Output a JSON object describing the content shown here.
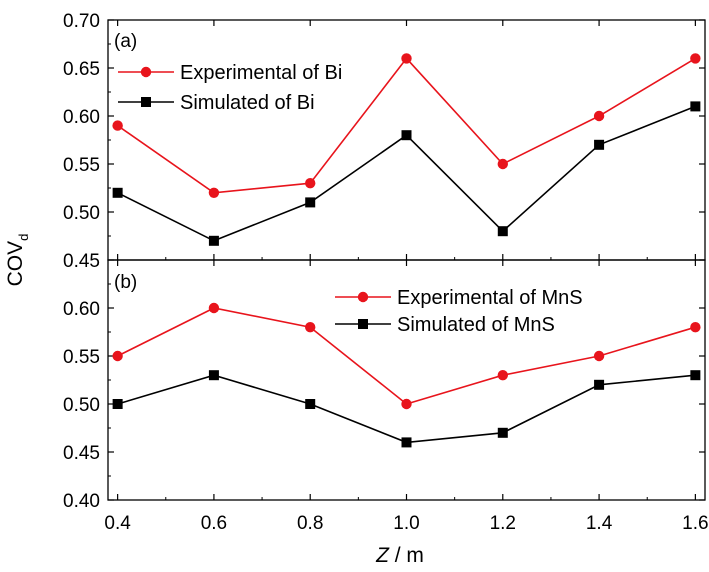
{
  "chart_data": [
    {
      "type": "line",
      "panel_label": "(a)",
      "x": [
        0.4,
        0.6,
        0.8,
        1.0,
        1.2,
        1.4,
        1.6
      ],
      "ylim": [
        0.45,
        0.7
      ],
      "yticks": [
        "0.45",
        "0.50",
        "0.55",
        "0.60",
        "0.65",
        "0.70"
      ],
      "legend_position": "top-left",
      "series": [
        {
          "name": "Experimental of Bi",
          "color": "#e8141c",
          "marker": "circle",
          "values": [
            0.59,
            0.52,
            0.53,
            0.66,
            0.55,
            0.6,
            0.66
          ]
        },
        {
          "name": "Simulated of Bi",
          "color": "#000000",
          "marker": "square",
          "values": [
            0.52,
            0.47,
            0.51,
            0.58,
            0.48,
            0.57,
            0.61
          ]
        }
      ]
    },
    {
      "type": "line",
      "panel_label": "(b)",
      "x": [
        0.4,
        0.6,
        0.8,
        1.0,
        1.2,
        1.4,
        1.6
      ],
      "ylim": [
        0.4,
        0.65
      ],
      "yticks": [
        "0.40",
        "0.45",
        "0.50",
        "0.55",
        "0.60"
      ],
      "legend_position": "top-right",
      "series": [
        {
          "name": "Experimental of MnS",
          "color": "#e8141c",
          "marker": "circle",
          "values": [
            0.55,
            0.6,
            0.58,
            0.5,
            0.53,
            0.55,
            0.58
          ]
        },
        {
          "name": "Simulated of MnS",
          "color": "#000000",
          "marker": "square",
          "values": [
            0.5,
            0.53,
            0.5,
            0.46,
            0.47,
            0.52,
            0.53
          ]
        }
      ]
    }
  ],
  "axes": {
    "ylabel_main": "COV",
    "ylabel_sub": "d",
    "xlabel_italic": "Z",
    "xlabel_rest": " / m",
    "xlim": [
      0.38,
      1.62
    ],
    "xticks": [
      "0.4",
      "0.6",
      "0.8",
      "1.0",
      "1.2",
      "1.4",
      "1.6"
    ]
  }
}
